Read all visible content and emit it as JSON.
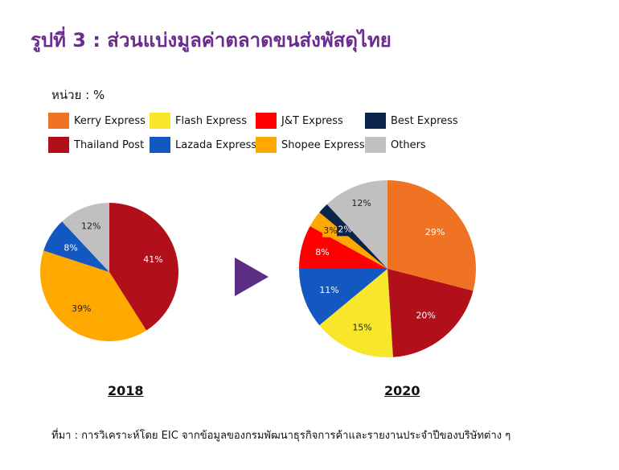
{
  "title": "รูปที่ 3 :  ส่วนแบ่งมูลค่าตลาดขนส่งพัสดุไทย",
  "unit": "หน่วย : %",
  "source": "ที่มา : การวิเคราะห์โดย EIC จากข้อมูลของกรมพัฒนาธุรกิจการค้าและรายงานประจำปีของบริษัทต่าง ๆ",
  "legend": [
    {
      "label": "Kerry Express",
      "color": "#f07323"
    },
    {
      "label": "Flash Express",
      "color": "#f8e62a"
    },
    {
      "label": "J&T Express",
      "color": "#ff0000"
    },
    {
      "label": "Best Express",
      "color": "#0b2447"
    },
    {
      "label": "Thailand Post",
      "color": "#b10f19"
    },
    {
      "label": "Lazada Express",
      "color": "#1357c1"
    },
    {
      "label": "Shopee Express",
      "color": "#ffa800"
    },
    {
      "label": "Others",
      "color": "#c0c0c0"
    }
  ],
  "chart_data": [
    {
      "type": "pie",
      "title": "2018",
      "slices": [
        {
          "name": "Thailand Post",
          "value": 41,
          "label": "41%",
          "color": "#b10f19"
        },
        {
          "name": "Shopee Express",
          "value": 39,
          "label": "39%",
          "color": "#ffa800"
        },
        {
          "name": "Lazada Express",
          "value": 8,
          "label": "8%",
          "color": "#1357c1"
        },
        {
          "name": "Others",
          "value": 12,
          "label": "12%",
          "color": "#c0c0c0"
        }
      ]
    },
    {
      "type": "pie",
      "title": "2020",
      "slices": [
        {
          "name": "Kerry Express",
          "value": 29,
          "label": "29%",
          "color": "#f07323"
        },
        {
          "name": "Thailand Post",
          "value": 20,
          "label": "20%",
          "color": "#b10f19"
        },
        {
          "name": "Flash Express",
          "value": 15,
          "label": "15%",
          "color": "#f8e62a"
        },
        {
          "name": "Lazada Express",
          "value": 11,
          "label": "11%",
          "color": "#1357c1"
        },
        {
          "name": "J&T Express",
          "value": 8,
          "label": "8%",
          "color": "#ff0000"
        },
        {
          "name": "Shopee Express",
          "value": 3,
          "label": "3%",
          "color": "#ffa800"
        },
        {
          "name": "Best Express",
          "value": 2,
          "label": "2%",
          "color": "#0b2447"
        },
        {
          "name": "Others",
          "value": 12,
          "label": "12%",
          "color": "#c0c0c0"
        }
      ]
    }
  ]
}
